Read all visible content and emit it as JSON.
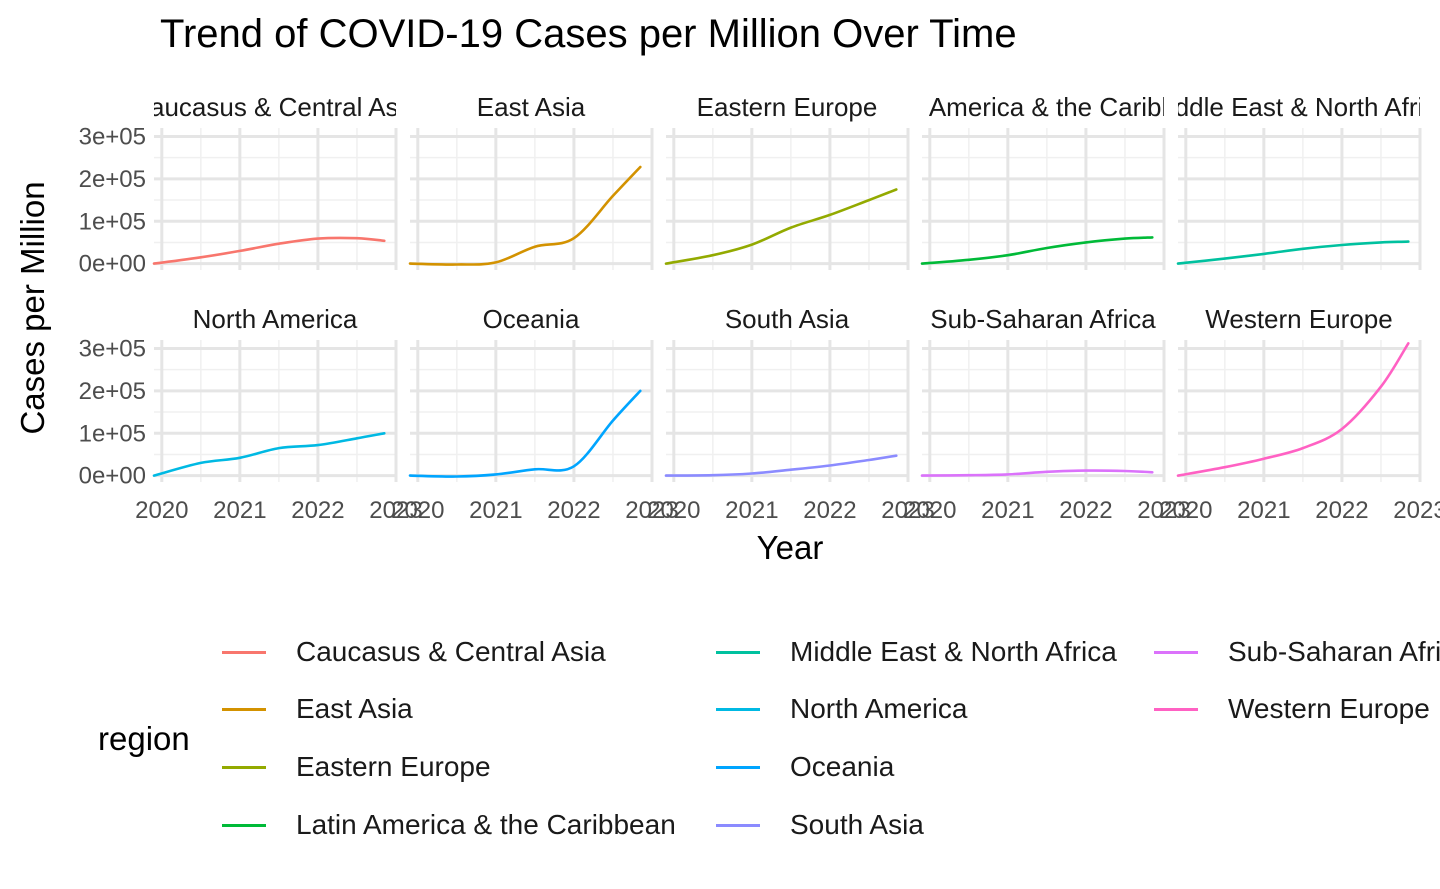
{
  "chart_data": {
    "type": "line",
    "title": "Trend of COVID-19 Cases per Million Over Time",
    "xlabel": "Year",
    "ylabel": "Cases per Million",
    "x_ticks": [
      2020,
      2021,
      2022,
      2023
    ],
    "y_ticks": [
      0,
      100000,
      200000,
      300000
    ],
    "y_tick_labels": [
      "0e+00",
      "1e+05",
      "2e+05",
      "3e+05"
    ],
    "xlim": [
      2019.9,
      2023.0
    ],
    "ylim": [
      -15000,
      320000
    ],
    "grid": true,
    "legend_title": "region",
    "legend_position": "bottom",
    "series": [
      {
        "name": "Caucasus & Central Asia",
        "color": "#F8766D",
        "points": [
          [
            2019.9,
            0
          ],
          [
            2020.5,
            15000
          ],
          [
            2021,
            30000
          ],
          [
            2021.5,
            47000
          ],
          [
            2022,
            59000
          ],
          [
            2022.5,
            60000
          ],
          [
            2022.85,
            54000
          ]
        ]
      },
      {
        "name": "East Asia",
        "color": "#D39200",
        "points": [
          [
            2019.9,
            0
          ],
          [
            2020.5,
            -2000
          ],
          [
            2021,
            3000
          ],
          [
            2021.5,
            40000
          ],
          [
            2022,
            60000
          ],
          [
            2022.5,
            160000
          ],
          [
            2022.85,
            228000
          ]
        ]
      },
      {
        "name": "Eastern Europe",
        "color": "#93AA00",
        "points": [
          [
            2019.9,
            0
          ],
          [
            2020.5,
            20000
          ],
          [
            2021,
            45000
          ],
          [
            2021.5,
            85000
          ],
          [
            2022,
            115000
          ],
          [
            2022.5,
            150000
          ],
          [
            2022.85,
            175000
          ]
        ]
      },
      {
        "name": "Latin America & the Caribbean",
        "color": "#00BA38",
        "points": [
          [
            2019.9,
            0
          ],
          [
            2020.5,
            9000
          ],
          [
            2021,
            20000
          ],
          [
            2021.5,
            37000
          ],
          [
            2022,
            50000
          ],
          [
            2022.5,
            59000
          ],
          [
            2022.85,
            62000
          ]
        ]
      },
      {
        "name": "Middle East & North Africa",
        "color": "#00C19F",
        "points": [
          [
            2019.9,
            0
          ],
          [
            2020.5,
            12000
          ],
          [
            2021,
            23000
          ],
          [
            2021.5,
            35000
          ],
          [
            2022,
            44000
          ],
          [
            2022.5,
            50000
          ],
          [
            2022.85,
            52000
          ]
        ]
      },
      {
        "name": "North America",
        "color": "#00B9E3",
        "points": [
          [
            2019.9,
            0
          ],
          [
            2020.5,
            30000
          ],
          [
            2021,
            42000
          ],
          [
            2021.5,
            65000
          ],
          [
            2022,
            72000
          ],
          [
            2022.5,
            88000
          ],
          [
            2022.85,
            100000
          ]
        ]
      },
      {
        "name": "Oceania",
        "color": "#00A5FF",
        "points": [
          [
            2019.9,
            0
          ],
          [
            2020.5,
            -2000
          ],
          [
            2021,
            3000
          ],
          [
            2021.5,
            15000
          ],
          [
            2022,
            22000
          ],
          [
            2022.5,
            130000
          ],
          [
            2022.85,
            200000
          ]
        ]
      },
      {
        "name": "South Asia",
        "color": "#8B8BFF",
        "points": [
          [
            2019.9,
            0
          ],
          [
            2020.5,
            1000
          ],
          [
            2021,
            5000
          ],
          [
            2021.5,
            14000
          ],
          [
            2022,
            24000
          ],
          [
            2022.5,
            37000
          ],
          [
            2022.85,
            47000
          ]
        ]
      },
      {
        "name": "Sub-Saharan Africa",
        "color": "#DB72FB",
        "points": [
          [
            2019.9,
            0
          ],
          [
            2020.5,
            1000
          ],
          [
            2021,
            3000
          ],
          [
            2021.5,
            9000
          ],
          [
            2022,
            12000
          ],
          [
            2022.5,
            11000
          ],
          [
            2022.85,
            8000
          ]
        ]
      },
      {
        "name": "Western Europe",
        "color": "#FF61C3",
        "points": [
          [
            2019.9,
            0
          ],
          [
            2020.5,
            20000
          ],
          [
            2021,
            40000
          ],
          [
            2021.5,
            65000
          ],
          [
            2022,
            110000
          ],
          [
            2022.5,
            210000
          ],
          [
            2022.85,
            312000
          ]
        ]
      }
    ]
  }
}
